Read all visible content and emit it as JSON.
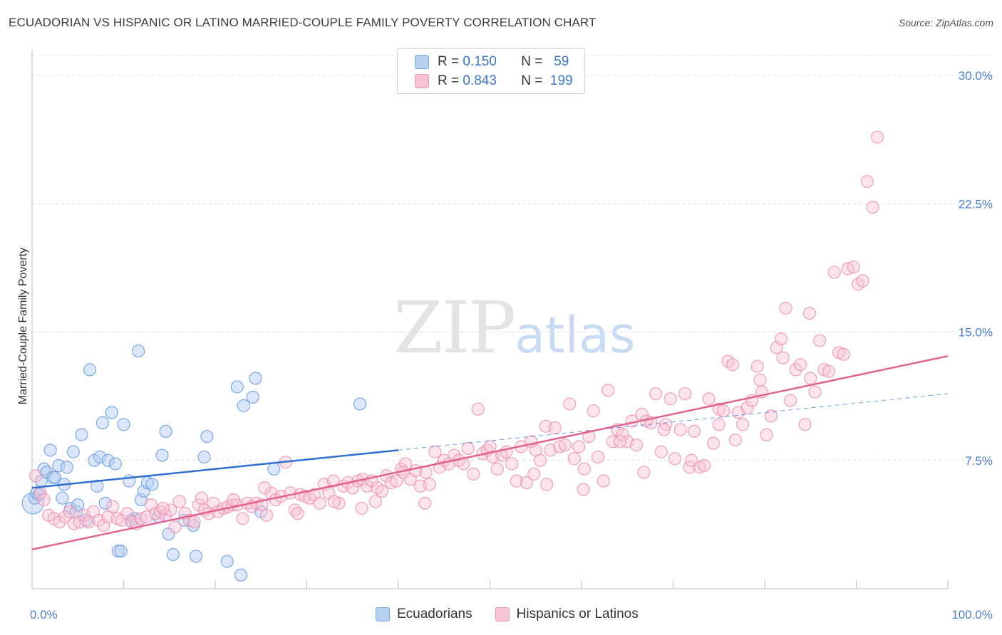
{
  "header": {
    "title": "ECUADORIAN VS HISPANIC OR LATINO MARRIED-COUPLE FAMILY POVERTY CORRELATION CHART",
    "source": "Source: ZipAtlas.com"
  },
  "watermark": {
    "zip": "ZIP",
    "atlas": "atlas"
  },
  "legend": {
    "rows": [
      {
        "r_label": "R =",
        "r_value": "0.150",
        "n_label": "N =",
        "n_value": "59"
      },
      {
        "r_label": "R =",
        "r_value": "0.843",
        "n_label": "N =",
        "n_value": "199"
      }
    ]
  },
  "bottom_legend": {
    "items": [
      "Ecuadorians",
      "Hispanics or Latinos"
    ]
  },
  "colors": {
    "ecuadorian_fill": "#b8d0f2",
    "ecuadorian_stroke": "#6f9fe0",
    "ecuadorian_line": "#2f6fcf",
    "hispanic_fill": "#f7c4d4",
    "hispanic_stroke": "#ec8fb0",
    "hispanic_line": "#e0628f",
    "tick_label": "#4a7fd0"
  },
  "chart_data": {
    "type": "scatter",
    "title": "ECUADORIAN VS HISPANIC OR LATINO MARRIED-COUPLE FAMILY POVERTY CORRELATION CHART",
    "xlabel": "",
    "ylabel": "Married-Couple Family Poverty",
    "xlim": [
      0,
      100
    ],
    "ylim": [
      0,
      31.5
    ],
    "x_tick_labels": [
      "0.0%",
      "100.0%"
    ],
    "y_ticks": [
      7.5,
      15.0,
      22.5,
      30.0
    ],
    "y_tick_labels": [
      "7.5%",
      "15.0%",
      "22.5%",
      "30.0%"
    ],
    "grid": "horizontal dashed",
    "legend_position": "top-center",
    "series": [
      {
        "name": "Ecuadorians",
        "R": 0.15,
        "N": 59,
        "trend": {
          "x0": 0,
          "y0": 5.9,
          "x1": 40,
          "y1": 8.1,
          "dashed_to": 100,
          "dashed_y": 11.4
        },
        "points": [
          [
            0.1,
            5.0
          ],
          [
            0.3,
            5.3
          ],
          [
            0.5,
            5.6
          ],
          [
            0.8,
            5.5
          ],
          [
            1.0,
            6.3
          ],
          [
            1.3,
            7.0
          ],
          [
            1.6,
            6.8
          ],
          [
            2.0,
            8.1
          ],
          [
            2.3,
            6.5
          ],
          [
            2.5,
            6.5
          ],
          [
            2.9,
            7.2
          ],
          [
            3.3,
            5.3
          ],
          [
            3.5,
            6.1
          ],
          [
            3.8,
            7.1
          ],
          [
            4.2,
            4.7
          ],
          [
            4.5,
            8.0
          ],
          [
            4.8,
            4.5
          ],
          [
            5.0,
            4.9
          ],
          [
            5.4,
            9.0
          ],
          [
            5.9,
            4.0
          ],
          [
            6.3,
            12.8
          ],
          [
            6.8,
            7.5
          ],
          [
            7.1,
            6.0
          ],
          [
            7.4,
            7.7
          ],
          [
            7.7,
            9.7
          ],
          [
            8.0,
            5.0
          ],
          [
            8.3,
            7.5
          ],
          [
            8.7,
            10.3
          ],
          [
            9.1,
            7.3
          ],
          [
            9.4,
            2.2
          ],
          [
            9.7,
            2.2
          ],
          [
            10.0,
            9.6
          ],
          [
            10.6,
            6.3
          ],
          [
            11.2,
            4.1
          ],
          [
            11.6,
            13.9
          ],
          [
            11.9,
            5.2
          ],
          [
            12.2,
            5.7
          ],
          [
            12.6,
            6.2
          ],
          [
            13.1,
            6.1
          ],
          [
            13.8,
            4.2
          ],
          [
            14.2,
            7.8
          ],
          [
            14.6,
            9.2
          ],
          [
            14.9,
            3.2
          ],
          [
            15.4,
            2.0
          ],
          [
            17.6,
            3.7
          ],
          [
            17.9,
            1.9
          ],
          [
            18.8,
            7.7
          ],
          [
            19.1,
            8.9
          ],
          [
            21.3,
            1.6
          ],
          [
            22.4,
            11.8
          ],
          [
            22.8,
            0.8
          ],
          [
            23.1,
            10.7
          ],
          [
            24.1,
            11.2
          ],
          [
            24.4,
            12.3
          ],
          [
            25.0,
            4.5
          ],
          [
            26.4,
            7.0
          ],
          [
            35.8,
            10.8
          ],
          [
            16.6,
            4.0
          ],
          [
            10.8,
            4.0
          ]
        ]
      },
      {
        "name": "Hispanics or Latinos",
        "R": 0.843,
        "N": 199,
        "trend": {
          "x0": 0,
          "y0": 2.3,
          "x1": 100,
          "y1": 13.6
        },
        "points": [
          [
            0.4,
            6.6
          ],
          [
            0.9,
            5.6
          ],
          [
            1.3,
            5.2
          ],
          [
            1.8,
            4.3
          ],
          [
            2.4,
            4.1
          ],
          [
            3.0,
            3.9
          ],
          [
            3.6,
            4.2
          ],
          [
            4.1,
            4.5
          ],
          [
            4.6,
            3.8
          ],
          [
            5.2,
            3.9
          ],
          [
            5.7,
            4.3
          ],
          [
            6.2,
            3.9
          ],
          [
            6.7,
            4.5
          ],
          [
            7.3,
            4.0
          ],
          [
            7.8,
            3.7
          ],
          [
            8.3,
            4.2
          ],
          [
            8.8,
            4.8
          ],
          [
            9.3,
            4.1
          ],
          [
            9.8,
            4.0
          ],
          [
            10.4,
            4.4
          ],
          [
            10.9,
            3.9
          ],
          [
            11.4,
            3.8
          ],
          [
            11.9,
            4.1
          ],
          [
            12.5,
            4.2
          ],
          [
            13.0,
            4.9
          ],
          [
            13.5,
            4.4
          ],
          [
            14.0,
            4.5
          ],
          [
            14.6,
            4.3
          ],
          [
            15.1,
            4.6
          ],
          [
            15.6,
            3.6
          ],
          [
            16.1,
            5.1
          ],
          [
            16.7,
            4.4
          ],
          [
            17.2,
            4.0
          ],
          [
            17.7,
            3.9
          ],
          [
            18.2,
            4.9
          ],
          [
            18.8,
            4.6
          ],
          [
            19.3,
            4.4
          ],
          [
            19.8,
            5.0
          ],
          [
            20.3,
            4.5
          ],
          [
            20.9,
            4.7
          ],
          [
            21.4,
            4.8
          ],
          [
            21.9,
            4.9
          ],
          [
            22.4,
            4.9
          ],
          [
            23.0,
            4.1
          ],
          [
            23.5,
            5.0
          ],
          [
            24.0,
            4.8
          ],
          [
            24.5,
            5.0
          ],
          [
            25.1,
            4.9
          ],
          [
            25.6,
            4.3
          ],
          [
            26.1,
            5.6
          ],
          [
            26.6,
            5.2
          ],
          [
            27.2,
            5.4
          ],
          [
            27.7,
            7.4
          ],
          [
            28.2,
            5.6
          ],
          [
            28.7,
            4.6
          ],
          [
            29.3,
            5.5
          ],
          [
            29.8,
            5.4
          ],
          [
            30.3,
            5.3
          ],
          [
            30.8,
            5.5
          ],
          [
            31.4,
            5.0
          ],
          [
            31.9,
            6.1
          ],
          [
            32.4,
            5.6
          ],
          [
            32.9,
            6.3
          ],
          [
            33.5,
            5.0
          ],
          [
            34.0,
            6.0
          ],
          [
            34.5,
            6.2
          ],
          [
            35.0,
            5.9
          ],
          [
            35.6,
            6.3
          ],
          [
            36.1,
            6.4
          ],
          [
            36.6,
            6.0
          ],
          [
            37.1,
            6.3
          ],
          [
            37.7,
            5.9
          ],
          [
            38.2,
            5.7
          ],
          [
            38.7,
            6.6
          ],
          [
            39.2,
            6.2
          ],
          [
            39.8,
            6.3
          ],
          [
            40.3,
            7.0
          ],
          [
            40.8,
            7.3
          ],
          [
            41.3,
            6.4
          ],
          [
            41.9,
            6.9
          ],
          [
            42.4,
            6.0
          ],
          [
            42.9,
            5.0
          ],
          [
            43.4,
            6.1
          ],
          [
            44.0,
            8.0
          ],
          [
            44.5,
            7.1
          ],
          [
            45.0,
            7.5
          ],
          [
            45.5,
            7.3
          ],
          [
            46.1,
            7.8
          ],
          [
            46.6,
            7.5
          ],
          [
            47.1,
            7.3
          ],
          [
            47.6,
            8.2
          ],
          [
            48.2,
            6.7
          ],
          [
            48.7,
            10.5
          ],
          [
            49.2,
            7.9
          ],
          [
            49.7,
            8.1
          ],
          [
            50.3,
            7.7
          ],
          [
            50.8,
            7.0
          ],
          [
            51.3,
            7.8
          ],
          [
            51.8,
            8.0
          ],
          [
            52.4,
            7.3
          ],
          [
            52.9,
            6.3
          ],
          [
            53.4,
            8.3
          ],
          [
            54.0,
            6.2
          ],
          [
            54.5,
            8.6
          ],
          [
            55.0,
            8.1
          ],
          [
            55.5,
            7.5
          ],
          [
            56.1,
            9.5
          ],
          [
            56.6,
            8.1
          ],
          [
            57.1,
            9.4
          ],
          [
            57.6,
            8.3
          ],
          [
            58.2,
            8.4
          ],
          [
            58.7,
            10.8
          ],
          [
            59.2,
            7.6
          ],
          [
            59.7,
            8.3
          ],
          [
            60.3,
            7.0
          ],
          [
            60.8,
            8.9
          ],
          [
            61.3,
            10.4
          ],
          [
            61.8,
            7.7
          ],
          [
            62.4,
            6.3
          ],
          [
            62.9,
            11.6
          ],
          [
            63.4,
            8.6
          ],
          [
            63.9,
            9.3
          ],
          [
            64.5,
            9.0
          ],
          [
            65.0,
            8.6
          ],
          [
            65.5,
            9.8
          ],
          [
            66.0,
            8.4
          ],
          [
            66.6,
            10.2
          ],
          [
            67.1,
            9.8
          ],
          [
            67.6,
            9.7
          ],
          [
            68.1,
            11.4
          ],
          [
            68.7,
            8.0
          ],
          [
            69.2,
            9.6
          ],
          [
            69.7,
            11.1
          ],
          [
            70.2,
            7.6
          ],
          [
            70.8,
            9.3
          ],
          [
            71.3,
            11.4
          ],
          [
            71.8,
            7.1
          ],
          [
            72.3,
            9.2
          ],
          [
            72.9,
            7.1
          ],
          [
            73.4,
            7.2
          ],
          [
            73.9,
            11.1
          ],
          [
            74.4,
            8.5
          ],
          [
            75.0,
            10.5
          ],
          [
            75.5,
            10.4
          ],
          [
            76.0,
            13.3
          ],
          [
            76.5,
            13.1
          ],
          [
            77.1,
            10.3
          ],
          [
            77.6,
            9.6
          ],
          [
            78.1,
            10.6
          ],
          [
            78.6,
            11.0
          ],
          [
            79.2,
            13.0
          ],
          [
            79.7,
            11.5
          ],
          [
            80.2,
            9.0
          ],
          [
            80.7,
            10.1
          ],
          [
            81.3,
            14.1
          ],
          [
            81.8,
            14.6
          ],
          [
            82.3,
            16.4
          ],
          [
            82.8,
            11.0
          ],
          [
            83.4,
            12.8
          ],
          [
            83.9,
            13.1
          ],
          [
            84.4,
            9.6
          ],
          [
            84.9,
            16.1
          ],
          [
            85.5,
            11.5
          ],
          [
            86.0,
            14.5
          ],
          [
            86.5,
            12.8
          ],
          [
            87.0,
            12.7
          ],
          [
            87.6,
            18.5
          ],
          [
            88.1,
            13.8
          ],
          [
            88.6,
            13.7
          ],
          [
            89.1,
            18.7
          ],
          [
            89.7,
            18.8
          ],
          [
            90.2,
            17.8
          ],
          [
            90.7,
            18.0
          ],
          [
            91.2,
            23.8
          ],
          [
            91.8,
            22.3
          ],
          [
            92.3,
            26.4
          ],
          [
            36.0,
            4.7
          ],
          [
            25.4,
            5.9
          ],
          [
            29.0,
            4.4
          ],
          [
            33.0,
            5.1
          ],
          [
            37.5,
            5.1
          ],
          [
            40.5,
            6.8
          ],
          [
            43.0,
            6.8
          ],
          [
            50.0,
            8.3
          ],
          [
            54.8,
            6.7
          ],
          [
            56.2,
            6.1
          ],
          [
            60.2,
            5.8
          ],
          [
            64.2,
            8.6
          ],
          [
            66.8,
            6.8
          ],
          [
            69.0,
            9.3
          ],
          [
            72.0,
            7.5
          ],
          [
            75.0,
            9.6
          ],
          [
            76.8,
            8.7
          ],
          [
            79.5,
            12.2
          ],
          [
            82.0,
            13.5
          ],
          [
            85.0,
            12.3
          ],
          [
            14.3,
            4.7
          ],
          [
            18.5,
            5.3
          ],
          [
            22.0,
            5.2
          ]
        ]
      }
    ]
  }
}
